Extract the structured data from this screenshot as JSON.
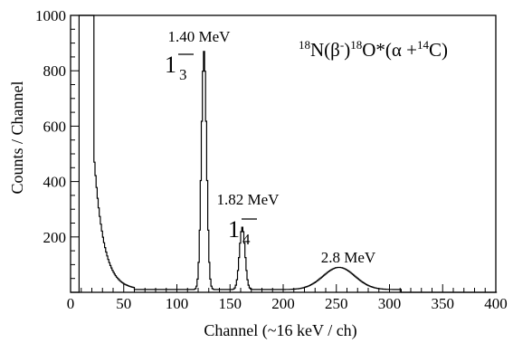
{
  "chart_data": {
    "type": "histogram",
    "xlabel": "Channel (~16 keV / ch)",
    "ylabel": "Counts / Channel",
    "xlim": [
      0,
      400
    ],
    "ylim": [
      0,
      1000
    ],
    "xticks": [
      0,
      50,
      100,
      150,
      200,
      250,
      300,
      350,
      400
    ],
    "yticks": [
      200,
      400,
      600,
      800,
      1000
    ],
    "ytick_labels": [
      "200",
      "400",
      "600",
      "800",
      "1000"
    ],
    "grid": false,
    "annotations": [
      {
        "energy": "1.40 MeV",
        "state": "1",
        "sub": "3",
        "x": 125
      },
      {
        "energy": "1.82 MeV",
        "state": "1",
        "sub": "4",
        "x": 162
      },
      {
        "energy": "2.8 MeV",
        "state": "",
        "sub": "",
        "x": 252
      }
    ],
    "reaction": {
      "a_sup": "18",
      "a": "N(β",
      "a_sup2": "-",
      "b_sup": ")",
      "b_iso": "18",
      "b": "O*(α +",
      "c_sup": "14",
      "c": "C)"
    },
    "series": [
      {
        "peaks": [
          {
            "center": 12,
            "height": 1000,
            "note": "off-scale"
          },
          {
            "center": 24,
            "height": 460
          },
          {
            "center": 125,
            "height": 860
          },
          {
            "center": 161,
            "height": 225
          },
          {
            "center": 252,
            "height": 80
          }
        ]
      }
    ]
  }
}
